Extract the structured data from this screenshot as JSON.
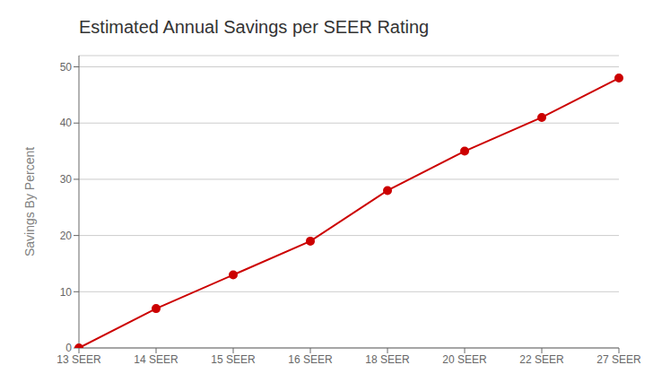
{
  "chart_data": {
    "type": "line",
    "title": "Estimated Annual Savings per SEER Rating",
    "ylabel": "Savings By Percent",
    "categories": [
      "13 SEER",
      "14 SEER",
      "15 SEER",
      "16 SEER",
      "18 SEER",
      "20 SEER",
      "22 SEER",
      "27 SEER"
    ],
    "values": [
      0,
      7,
      13,
      19,
      28,
      35,
      41,
      48
    ],
    "color": "#cc0000",
    "marker": "circle",
    "ylim": [
      0,
      52
    ],
    "yticks": [
      0,
      10,
      20,
      30,
      40,
      50
    ],
    "grid": true
  }
}
